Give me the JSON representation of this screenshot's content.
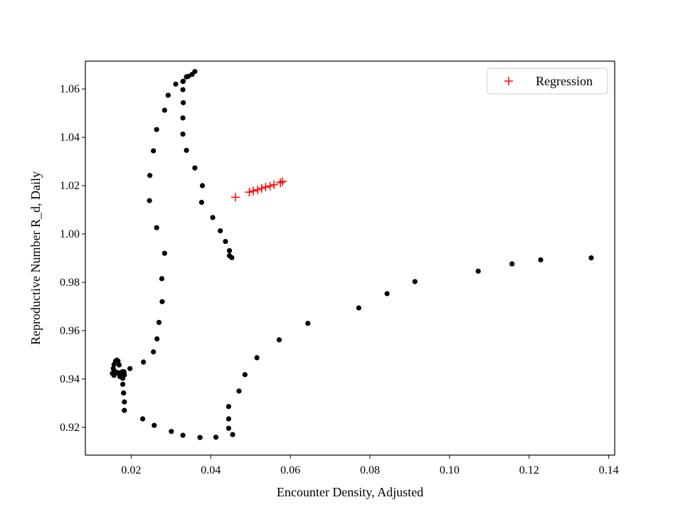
{
  "chart_data": {
    "type": "scatter",
    "xlabel": "Encounter Density, Adjusted",
    "ylabel": "Reproductive Number R_d, Daily",
    "xlim": [
      0.0085,
      0.1415
    ],
    "ylim": [
      0.9085,
      1.0715
    ],
    "xticks": [
      0.02,
      0.04,
      0.06,
      0.08,
      0.1,
      0.12,
      0.14
    ],
    "xtick_labels": [
      "0.02",
      "0.04",
      "0.06",
      "0.08",
      "0.10",
      "0.12",
      "0.14"
    ],
    "yticks": [
      0.92,
      0.94,
      0.96,
      0.98,
      1.0,
      1.02,
      1.04,
      1.06
    ],
    "ytick_labels": [
      "0.92",
      "0.94",
      "0.96",
      "0.98",
      "1.00",
      "1.02",
      "1.04",
      "1.06"
    ],
    "grid": false,
    "legend_position": "top-right",
    "series": [
      {
        "marker": "dot",
        "color": "#000000",
        "x": [
          0.036,
          0.0353,
          0.0343,
          0.0331,
          0.0312,
          0.0293,
          0.0284,
          0.0264,
          0.0256,
          0.0247,
          0.0246,
          0.0264,
          0.0284,
          0.0277,
          0.0278,
          0.027,
          0.0265,
          0.0256,
          0.0231,
          0.0197,
          0.0182,
          0.0172,
          0.0165,
          0.0158,
          0.0155,
          0.0157,
          0.0161,
          0.0164,
          0.0167,
          0.017,
          0.0176,
          0.0179,
          0.0179,
          0.0181,
          0.0183,
          0.0183,
          0.0183,
          0.0179,
          0.017,
          0.0163,
          0.0157,
          0.0153,
          0.0229,
          0.0258,
          0.0301,
          0.033,
          0.0373,
          0.0413,
          0.0455,
          0.0445,
          0.0445,
          0.0445,
          0.0471,
          0.0486,
          0.0516,
          0.0572,
          0.0644,
          0.0772,
          0.0843,
          0.0913,
          0.1072,
          0.1157,
          0.1229,
          0.1356,
          0.0453,
          0.0447,
          0.0447,
          0.0437,
          0.0424,
          0.0405,
          0.0377,
          0.0379,
          0.036,
          0.0339,
          0.033,
          0.033,
          0.0331,
          0.033,
          0.033,
          0.0339
        ],
        "y": [
          1.0672,
          1.066,
          1.0652,
          1.0632,
          1.062,
          1.0574,
          1.0512,
          1.0432,
          1.0344,
          1.0242,
          1.0138,
          1.0026,
          0.992,
          0.9815,
          0.972,
          0.9634,
          0.9566,
          0.9512,
          0.947,
          0.9443,
          0.943,
          0.941,
          0.9425,
          0.9432,
          0.9443,
          0.946,
          0.9474,
          0.9478,
          0.9474,
          0.9458,
          0.9428,
          0.9403,
          0.9378,
          0.9342,
          0.9305,
          0.927,
          0.9417,
          0.943,
          0.9425,
          0.9428,
          0.9415,
          0.9423,
          0.9235,
          0.9208,
          0.9183,
          0.9167,
          0.9158,
          0.9159,
          0.917,
          0.9196,
          0.9235,
          0.9286,
          0.935,
          0.9418,
          0.9488,
          0.9562,
          0.963,
          0.9694,
          0.9753,
          0.9803,
          0.9846,
          0.9876,
          0.9893,
          0.9901,
          0.9902,
          0.991,
          0.9931,
          0.9969,
          1.0013,
          1.0068,
          1.0131,
          1.02,
          1.0273,
          1.0346,
          1.0413,
          1.048,
          1.0543,
          1.0597,
          1.0631,
          1.065
        ]
      },
      {
        "name": "Regression",
        "marker": "plus",
        "color": "#ff0000",
        "x": [
          0.0462,
          0.0497,
          0.0507,
          0.0518,
          0.0528,
          0.0538,
          0.0549,
          0.0559,
          0.0575,
          0.058
        ],
        "y": [
          1.0152,
          1.0173,
          1.0178,
          1.0183,
          1.0189,
          1.0194,
          1.0198,
          1.0204,
          1.0212,
          1.0217
        ]
      }
    ]
  }
}
